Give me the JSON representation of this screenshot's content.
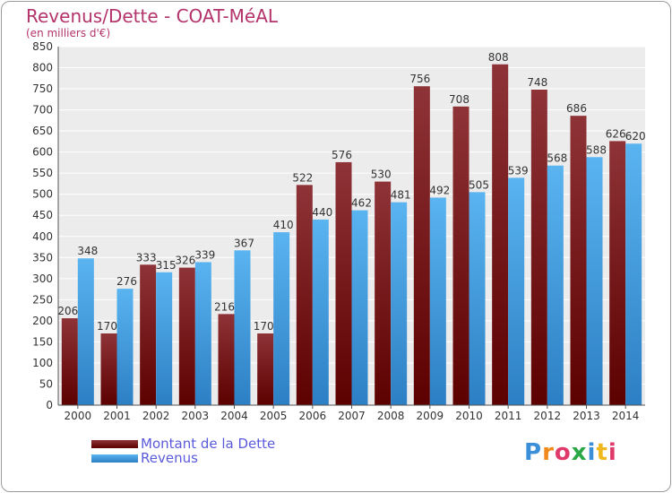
{
  "header": {
    "title": "Revenus/Dette - COAT-MéAL",
    "subtitle": "(en milliers d'€)"
  },
  "chart_data": {
    "type": "bar",
    "title": "Revenus/Dette - COAT-MéAL",
    "ylabel": "(en milliers d'€)",
    "xlabel": "",
    "ylim": [
      0,
      850
    ],
    "yticks": [
      0,
      50,
      100,
      150,
      200,
      250,
      300,
      350,
      400,
      450,
      500,
      550,
      600,
      650,
      700,
      750,
      800,
      850
    ],
    "grid": true,
    "legend_position": "bottom-left",
    "categories": [
      "2000",
      "2001",
      "2002",
      "2003",
      "2004",
      "2005",
      "2006",
      "2007",
      "2008",
      "2009",
      "2010",
      "2011",
      "2012",
      "2013",
      "2014"
    ],
    "series": [
      {
        "name": "Montant de la Dette",
        "color": "#7a1f24",
        "values": [
          206,
          170,
          333,
          326,
          216,
          170,
          522,
          576,
          530,
          756,
          708,
          808,
          748,
          686,
          626
        ]
      },
      {
        "name": "Revenus",
        "color": "#4aa3e6",
        "values": [
          348,
          276,
          315,
          339,
          367,
          410,
          440,
          462,
          481,
          492,
          505,
          539,
          568,
          588,
          620
        ]
      }
    ]
  },
  "legend": {
    "items": [
      {
        "label": "Montant de la Dette",
        "color": "#7a1f24"
      },
      {
        "label": "Revenus",
        "color": "#4aa3e6"
      }
    ]
  },
  "logo": {
    "letters": [
      "P",
      "r",
      "o",
      "x",
      "i",
      "t",
      "i"
    ],
    "colors": [
      "#3a8fd8",
      "#f08a1c",
      "#e03a6a",
      "#2aa845",
      "#3a8fd8",
      "#f0b81c",
      "#e03a6a"
    ]
  }
}
